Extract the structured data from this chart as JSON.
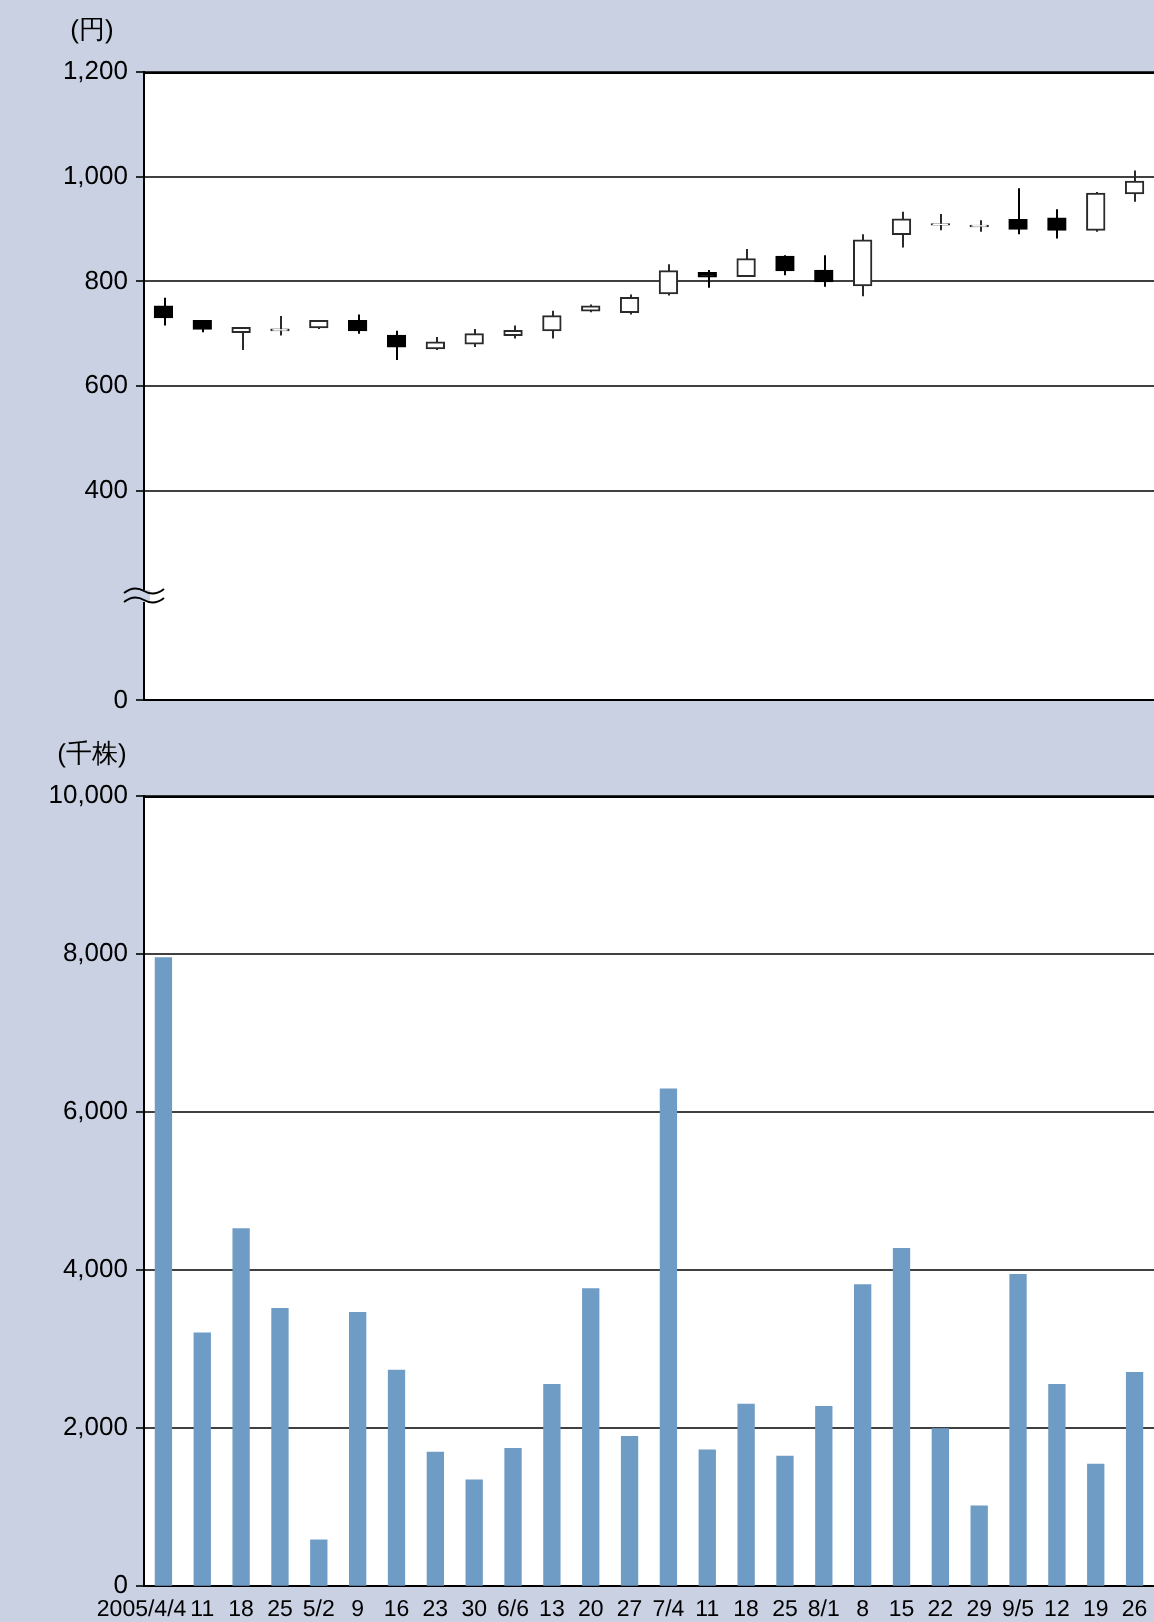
{
  "chart_data": [
    {
      "type": "candlestick",
      "ylabel": "(円)",
      "categories": [
        null,
        null,
        null,
        null,
        null,
        null,
        null,
        null,
        null,
        null,
        null,
        null,
        null,
        null,
        null,
        null,
        null,
        null,
        null,
        null,
        null,
        null,
        null,
        null,
        null,
        null
      ],
      "ohlc": [
        [
          753,
          769,
          716,
          731
        ],
        [
          725,
          725,
          703,
          709
        ],
        [
          703,
          712,
          669,
          712
        ],
        [
          706,
          734,
          697,
          709
        ],
        [
          712,
          725,
          709,
          725
        ],
        [
          725,
          737,
          700,
          706
        ],
        [
          697,
          706,
          650,
          675
        ],
        [
          672,
          694,
          669,
          684
        ],
        [
          681,
          709,
          675,
          700
        ],
        [
          697,
          716,
          691,
          706
        ],
        [
          706,
          744,
          691,
          734
        ],
        [
          744,
          756,
          741,
          753
        ],
        [
          741,
          775,
          737,
          769
        ],
        [
          777,
          833,
          773,
          820
        ],
        [
          817,
          822,
          788,
          809
        ],
        [
          810,
          862,
          810,
          843
        ],
        [
          848,
          850,
          812,
          821
        ],
        [
          821,
          850,
          790,
          800
        ],
        [
          792,
          890,
          772,
          879
        ],
        [
          890,
          933,
          865,
          919
        ],
        [
          908,
          929,
          898,
          910
        ],
        [
          905,
          917,
          895,
          907
        ],
        [
          918,
          978,
          890,
          900
        ],
        [
          921,
          938,
          882,
          898
        ],
        [
          898,
          971,
          895,
          968
        ],
        [
          968,
          1012,
          952,
          991
        ]
      ],
      "ylim": [
        0,
        1200
      ],
      "yticks": [
        0,
        400,
        600,
        800,
        {
          "value": 1000,
          "label": "1,000"
        },
        {
          "value": 1200,
          "label": "1,200"
        }
      ],
      "grid": "y",
      "tick_labels": "y",
      "legend": false
    },
    {
      "type": "bar",
      "ylabel": "(千株)",
      "categories": [
        "2005/4/4",
        "11",
        "18",
        "25",
        "5/2",
        "9",
        "16",
        "23",
        "30",
        "6/6",
        "13",
        "20",
        "27",
        "7/4",
        "11",
        "18",
        "25",
        "8/1",
        "8",
        "15",
        "22",
        "29",
        "9/5",
        "12",
        "19",
        "26"
      ],
      "values": [
        7950,
        3200,
        4520,
        3510,
        580,
        3460,
        2730,
        1690,
        1340,
        1740,
        2550,
        3760,
        1890,
        6290,
        1720,
        2300,
        1640,
        2270,
        3810,
        4270,
        1990,
        1010,
        3940,
        2550,
        1540,
        2700
      ],
      "color": "#6f9cc4",
      "ylim": [
        0,
        10000
      ],
      "yticks": [
        0,
        {
          "value": 2000,
          "label": "2,000"
        },
        {
          "value": 4000,
          "label": "4,000"
        },
        {
          "value": 6000,
          "label": "6,000"
        },
        {
          "value": 8000,
          "label": "8,000"
        },
        {
          "value": 10000,
          "label": "10,000"
        }
      ],
      "grid": "y",
      "legend": false
    }
  ]
}
